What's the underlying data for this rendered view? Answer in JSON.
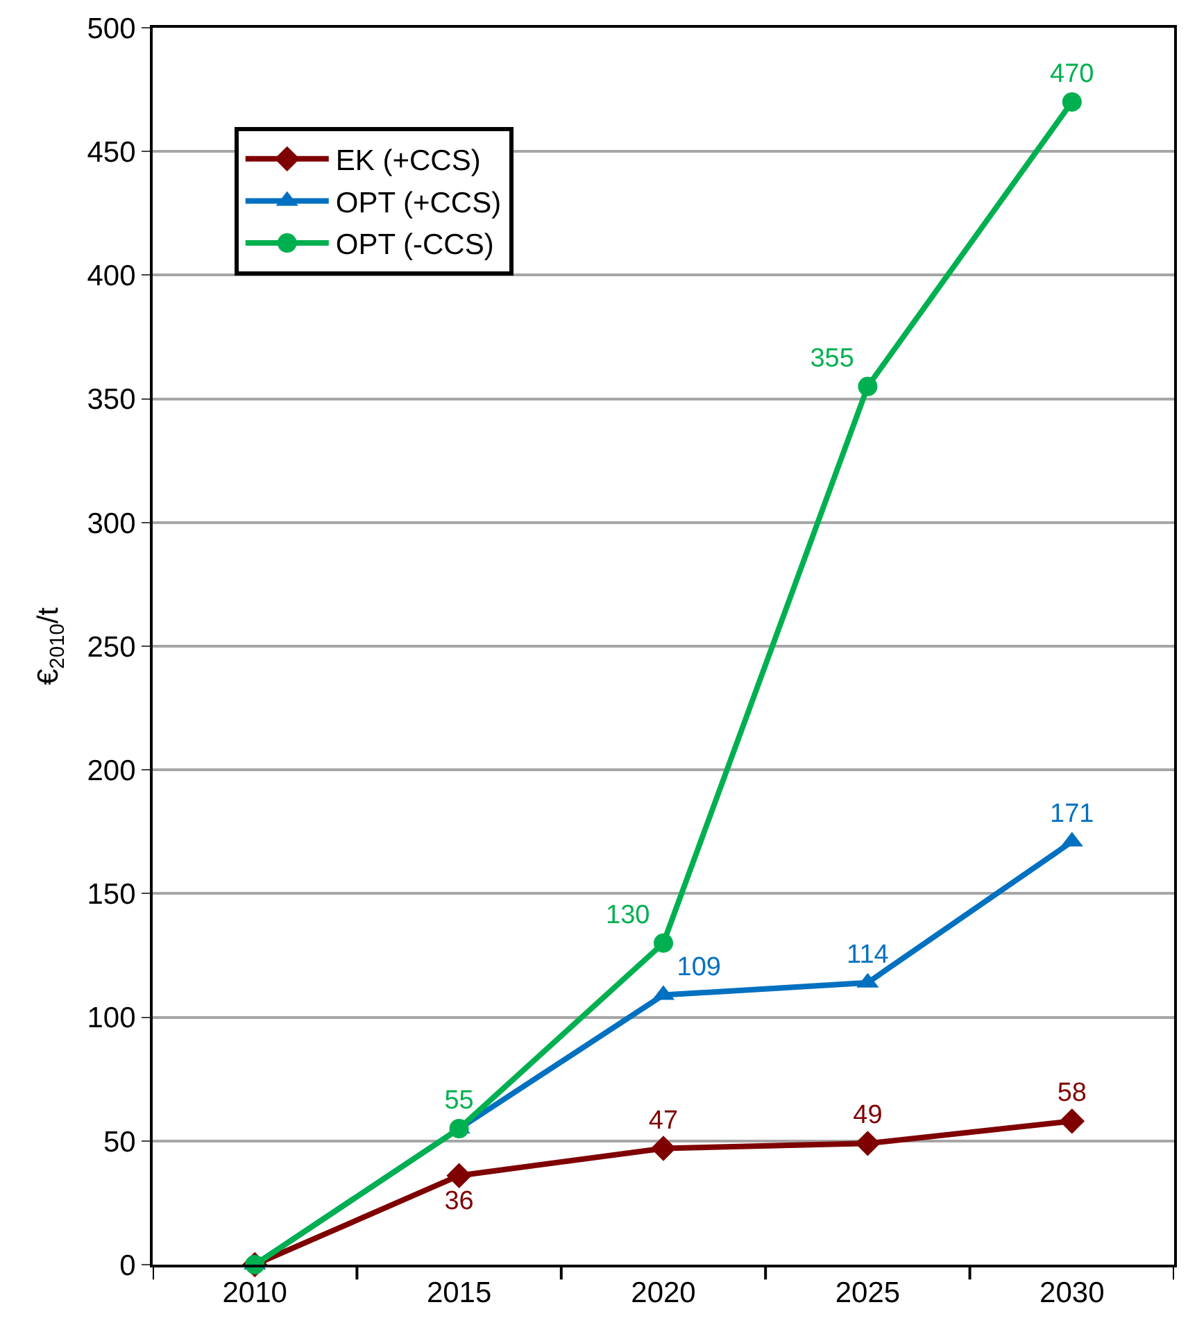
{
  "chart_data": {
    "type": "line",
    "ylabel": "€$_{2010}$/t",
    "categories": [
      "2010",
      "2015",
      "2020",
      "2025",
      "2030"
    ],
    "series": [
      {
        "name": "EK (+CCS)",
        "color": "#7f0000",
        "marker": "diamond",
        "values": [
          0,
          36,
          47,
          49,
          58
        ],
        "value_labels": [
          null,
          "36",
          "47",
          "49",
          "58"
        ]
      },
      {
        "name": "OPT (+CCS)",
        "color": "#0070c0",
        "marker": "triangle",
        "values": [
          0,
          55,
          109,
          114,
          171
        ],
        "value_labels": [
          null,
          null,
          "109",
          "114",
          "171"
        ]
      },
      {
        "name": "OPT (-CCS)",
        "color": "#00b050",
        "marker": "circle",
        "values": [
          0,
          55,
          130,
          355,
          470
        ],
        "value_labels": [
          null,
          "55",
          "130",
          "355",
          "470"
        ]
      }
    ],
    "ylim": [
      0,
      500
    ],
    "yticks": [
      0,
      50,
      100,
      150,
      200,
      250,
      300,
      350,
      400,
      450,
      500
    ],
    "grid": "y",
    "legend": "top left",
    "line_style": "solid"
  }
}
